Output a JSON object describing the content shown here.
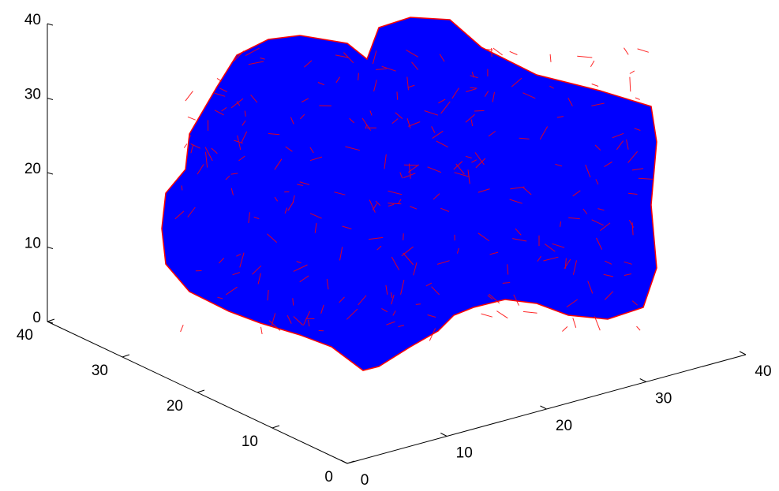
{
  "chart_data": {
    "type": "scatter3d",
    "xlim": [
      0,
      40
    ],
    "ylim": [
      0,
      40
    ],
    "zlim": [
      0,
      40
    ],
    "xticks": [
      0,
      10,
      20,
      30,
      40
    ],
    "yticks": [
      0,
      10,
      20,
      30,
      40
    ],
    "zticks": [
      0,
      10,
      20,
      30,
      40
    ],
    "marker_color": "#0000ff",
    "edge_color": "#ff0000"
  }
}
